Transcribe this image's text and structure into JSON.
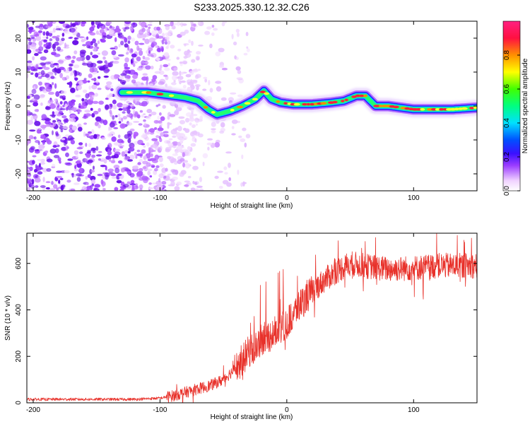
{
  "title": "S233.2025.330.12.32.C26",
  "chart_data": [
    {
      "type": "heatmap",
      "xlabel": "Height of straight line (km)",
      "ylabel": "Frequency (Hz)",
      "xlim": [
        -205,
        150
      ],
      "ylim": [
        -25,
        25
      ],
      "xticks": [
        -200,
        -100,
        0,
        100
      ],
      "yticks": [
        -20,
        -10,
        0,
        10,
        20
      ],
      "colorbar": {
        "label": "Normalized spectral amplitude",
        "range": [
          0,
          1
        ],
        "ticks": [
          0.0,
          0.2,
          0.4,
          0.6,
          0.8
        ]
      },
      "ridge": {
        "x": [
          -130,
          -110,
          -100,
          -90,
          -80,
          -70,
          -62,
          -55,
          -45,
          -35,
          -25,
          -18,
          -12,
          -5,
          5,
          20,
          35,
          45,
          55,
          62,
          70,
          80,
          90,
          100,
          110,
          120,
          130,
          150
        ],
        "y": [
          4,
          4,
          3.5,
          3,
          2.5,
          1.5,
          -1,
          -2.5,
          -1.5,
          0,
          2,
          4.5,
          2,
          1,
          0.5,
          0.5,
          1,
          1.5,
          3,
          3,
          0,
          0,
          -0.5,
          -1,
          -1,
          -1,
          -1,
          -0.5
        ]
      }
    },
    {
      "type": "line",
      "xlabel": "Height of straight line (km)",
      "ylabel": "SNR (10 * v/v)",
      "xlim": [
        -205,
        150
      ],
      "ylim": [
        0,
        730
      ],
      "xticks": [
        -200,
        -100,
        0,
        100
      ],
      "yticks": [
        0,
        200,
        400,
        600
      ],
      "color": "#e8312a",
      "trend": {
        "x": [
          -205,
          -120,
          -100,
          -90,
          -80,
          -70,
          -60,
          -50,
          -40,
          -30,
          -20,
          -10,
          -5,
          0,
          10,
          20,
          30,
          40,
          50,
          60,
          80,
          100,
          120,
          150
        ],
        "y": [
          15,
          15,
          20,
          30,
          45,
          60,
          75,
          100,
          150,
          220,
          270,
          300,
          330,
          340,
          420,
          480,
          530,
          570,
          600,
          590,
          575,
          580,
          590,
          590
        ]
      }
    }
  ]
}
